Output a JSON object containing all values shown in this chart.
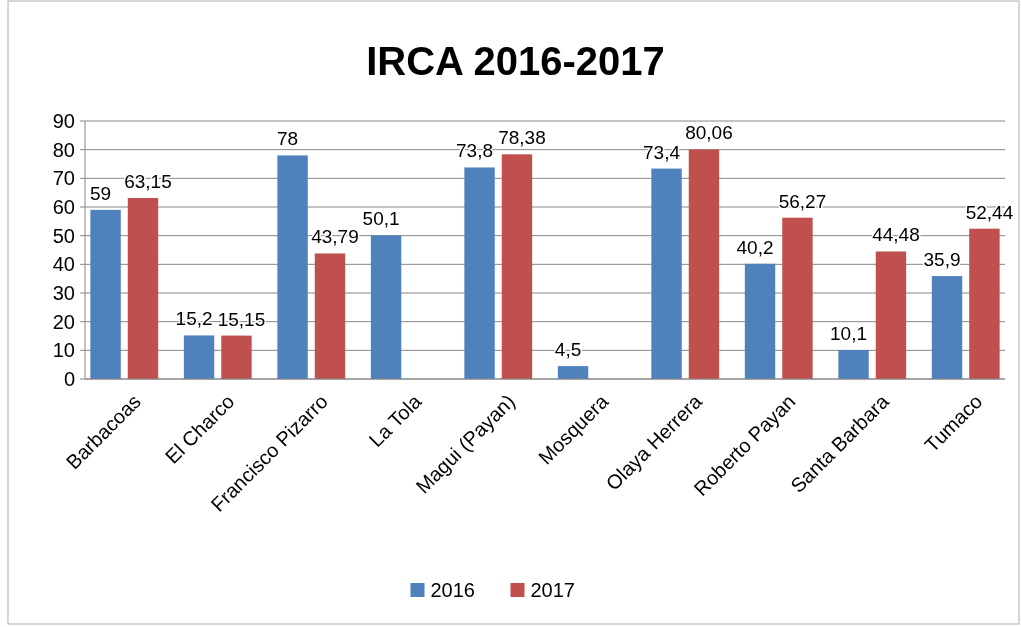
{
  "chart_data": {
    "type": "bar",
    "title": "IRCA 2016-2017",
    "categories": [
      "Barbacoas",
      "El Charco",
      "Francisco Pizarro",
      "La Tola",
      "Magui (Payan)",
      "Mosquera",
      "Olaya Herrera",
      "Roberto Payan",
      "Santa Barbara",
      "Tumaco"
    ],
    "series": [
      {
        "name": "2016",
        "color": "#4f81bd",
        "values": [
          59,
          15.2,
          78,
          50.1,
          73.8,
          4.5,
          73.4,
          40.2,
          10.1,
          35.9
        ],
        "value_labels": [
          "59",
          "15,2",
          "78",
          "50,1",
          "73,8",
          "4,5",
          "73,4",
          "40,2",
          "10,1",
          "35,9"
        ]
      },
      {
        "name": "2017",
        "color": "#c0504d",
        "values": [
          63.15,
          15.15,
          43.79,
          null,
          78.38,
          null,
          80.06,
          56.27,
          44.48,
          52.44
        ],
        "value_labels": [
          "63,15",
          "15,15",
          "43,79",
          null,
          "78,38",
          null,
          "80,06",
          "56,27",
          "44,48",
          "52,44"
        ]
      }
    ],
    "ylim": [
      0,
      90
    ],
    "yticks": [
      0,
      10,
      20,
      30,
      40,
      50,
      60,
      70,
      80,
      90
    ],
    "grid": "y",
    "legend": "bottom"
  }
}
